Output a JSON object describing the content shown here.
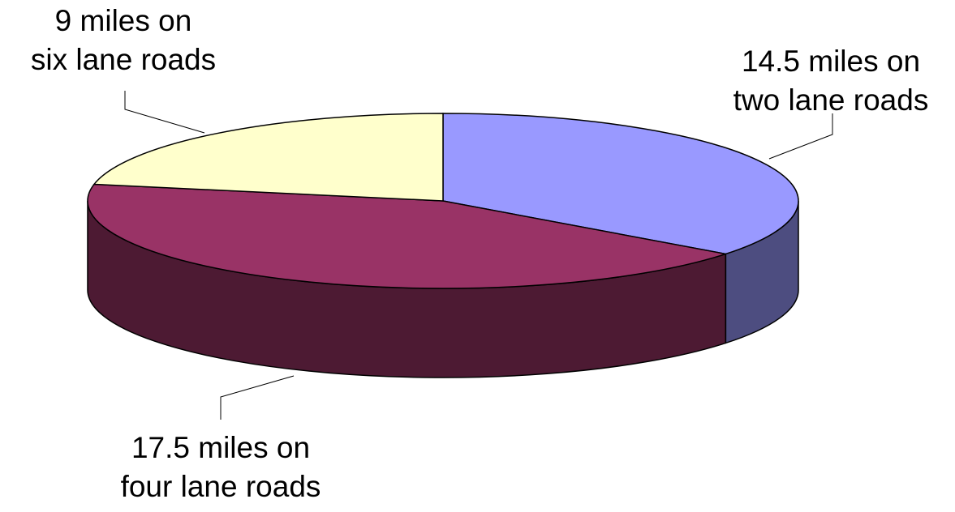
{
  "chart_data": {
    "type": "pie",
    "style": "3d",
    "slices": [
      {
        "label_lines": [
          "14.5 miles on",
          "two lane roads"
        ],
        "value": 14.5,
        "unit": "miles",
        "color": "#9999ff",
        "side_color": "#4d4d80"
      },
      {
        "label_lines": [
          "17.5 miles on",
          "four lane roads"
        ],
        "value": 17.5,
        "unit": "miles",
        "color": "#993366",
        "side_color": "#4d1a33"
      },
      {
        "label_lines": [
          "9 miles on",
          "six lane roads"
        ],
        "value": 9,
        "unit": "miles",
        "color": "#ffffcc",
        "side_color": "#808066"
      }
    ]
  }
}
